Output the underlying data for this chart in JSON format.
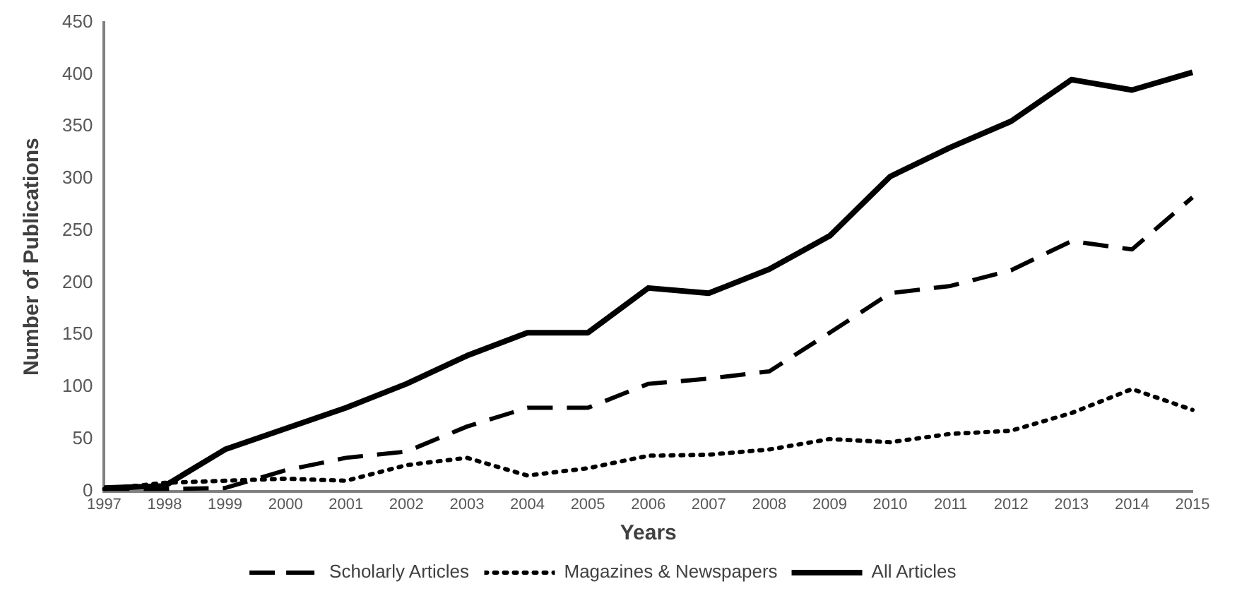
{
  "chart_data": {
    "type": "line",
    "xlabel": "Years",
    "ylabel": "Number of Publications",
    "categories": [
      "1997",
      "1998",
      "1999",
      "2000",
      "2001",
      "2002",
      "2003",
      "2004",
      "2005",
      "2006",
      "2007",
      "2008",
      "2009",
      "2010",
      "2011",
      "2012",
      "2013",
      "2014",
      "2015"
    ],
    "series": [
      {
        "name": "Scholarly Articles",
        "color": "#000000",
        "line_style": "dashed",
        "values": [
          2,
          2,
          3,
          20,
          32,
          38,
          62,
          80,
          80,
          103,
          108,
          115,
          152,
          190,
          197,
          212,
          240,
          232,
          282
        ]
      },
      {
        "name": "Magazines & Newspapers",
        "color": "#000000",
        "line_style": "dotted",
        "values": [
          2,
          8,
          10,
          12,
          10,
          25,
          32,
          15,
          22,
          34,
          35,
          40,
          50,
          47,
          55,
          58,
          75,
          98,
          78
        ]
      },
      {
        "name": "All Articles",
        "color": "#000000",
        "line_style": "solid",
        "values": [
          3,
          5,
          40,
          60,
          80,
          103,
          130,
          152,
          152,
          195,
          190,
          213,
          245,
          302,
          330,
          355,
          395,
          385,
          402
        ]
      }
    ],
    "ylim": [
      0,
      450
    ],
    "yticks": [
      0,
      50,
      100,
      150,
      200,
      250,
      300,
      350,
      400,
      450
    ],
    "grid": false,
    "legend": "bottom",
    "marker": "none"
  }
}
